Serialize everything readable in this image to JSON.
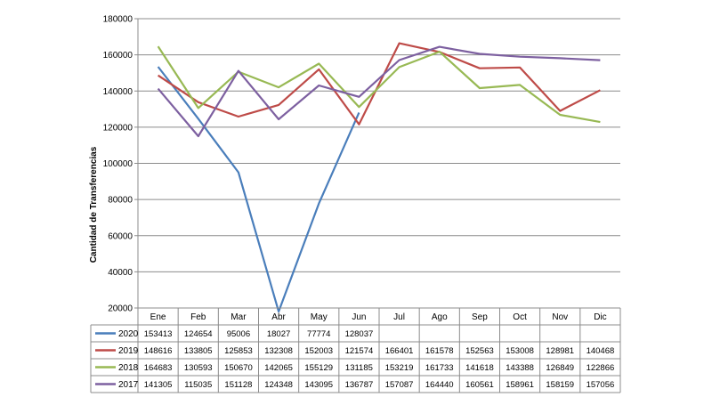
{
  "chart_data": {
    "type": "line",
    "title": "",
    "xlabel": "",
    "ylabel": "Cantidad de Transferencias",
    "ylim": [
      20000,
      180000
    ],
    "yticks": [
      20000,
      40000,
      60000,
      80000,
      100000,
      120000,
      140000,
      160000,
      180000
    ],
    "grid": "horizontal",
    "legend": "data-table",
    "categories": [
      "Ene",
      "Feb",
      "Mar",
      "Abr",
      "May",
      "Jun",
      "Jul",
      "Ago",
      "Sep",
      "Oct",
      "Nov",
      "Dic"
    ],
    "series": [
      {
        "name": "2020",
        "color": "#4a7ebb",
        "values": [
          153413,
          124654,
          95006,
          18027,
          77774,
          128037,
          null,
          null,
          null,
          null,
          null,
          null
        ]
      },
      {
        "name": "2019",
        "color": "#be4b48",
        "values": [
          148616,
          133805,
          125853,
          132308,
          152003,
          121574,
          166401,
          161578,
          152563,
          153008,
          128981,
          140468
        ]
      },
      {
        "name": "2018",
        "color": "#98b954",
        "values": [
          164683,
          130593,
          150670,
          142065,
          155129,
          131185,
          153219,
          161733,
          141618,
          143388,
          126849,
          122866
        ]
      },
      {
        "name": "2017",
        "color": "#7d60a0",
        "values": [
          141305,
          115035,
          151128,
          124348,
          143095,
          136787,
          157087,
          164440,
          160561,
          158961,
          158159,
          157056
        ]
      }
    ]
  }
}
